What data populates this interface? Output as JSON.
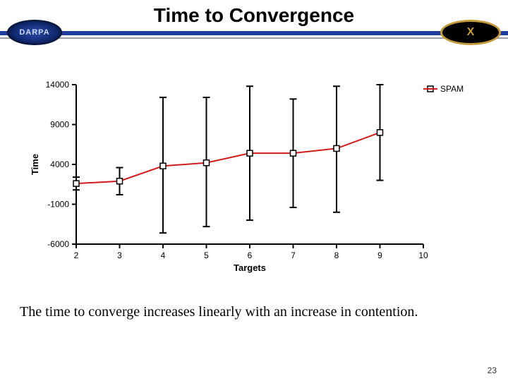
{
  "header": {
    "title": "Time to Convergence",
    "logo_left_text": "DARPA",
    "logo_right_text": "X"
  },
  "caption": "The time to converge increases linearly with an increase in contention.",
  "page_number": "23",
  "chart": {
    "type": "errorbar-line",
    "xlabel": "Targets",
    "ylabel": "Time",
    "label_fontsize": 13,
    "tick_fontsize": 12,
    "label_font_family": "Verdana, Arial, sans-serif",
    "xlim": [
      2,
      10
    ],
    "ylim": [
      -6000,
      14000
    ],
    "xticks": [
      2,
      3,
      4,
      5,
      6,
      7,
      8,
      9,
      10
    ],
    "yticks": [
      -6000,
      -1000,
      4000,
      9000,
      14000
    ],
    "series_label": "SPAM",
    "x": [
      2,
      3,
      4,
      5,
      6,
      7,
      8,
      9
    ],
    "y": [
      1600,
      1900,
      3800,
      4200,
      5400,
      5400,
      6000,
      8000
    ],
    "err_low": [
      800,
      200,
      -4600,
      -3800,
      -3000,
      -1400,
      -2000,
      2000
    ],
    "err_high": [
      2400,
      3600,
      12400,
      12400,
      13800,
      12200,
      13800,
      14000
    ],
    "line_color": "#d01c1c",
    "line_width": 2,
    "marker_style": "square-open",
    "marker_size": 8,
    "marker_stroke": "#000000",
    "errorbar_color": "#000000",
    "errorbar_width": 2,
    "errorbar_cap": 10,
    "axis_color": "#000000",
    "tick_length": 6,
    "background_color": "#ffffff",
    "legend_position": "top-right",
    "legend_marker_color": "#d01c1c"
  }
}
